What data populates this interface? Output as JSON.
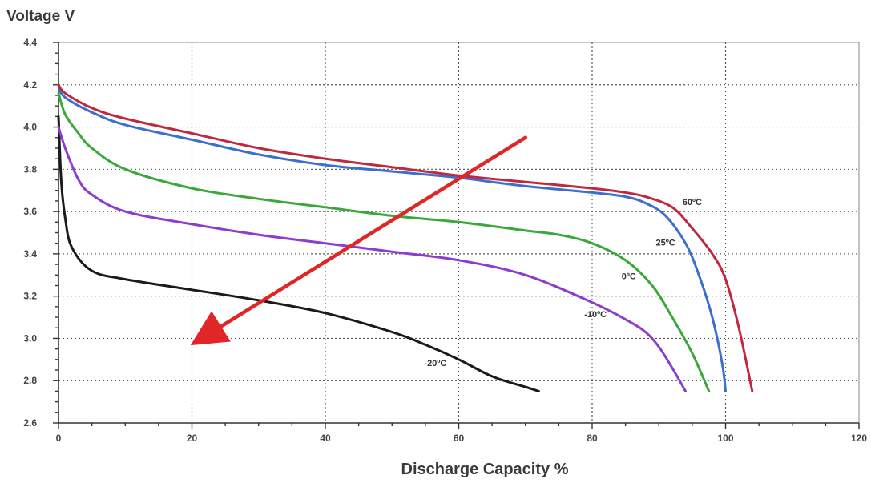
{
  "chart_data": {
    "type": "line",
    "title": "",
    "ylabel": "Voltage V",
    "xlabel": "Discharge Capacity %",
    "xlim": [
      0,
      120
    ],
    "ylim": [
      2.6,
      4.4
    ],
    "x_ticks": [
      0,
      20,
      40,
      60,
      80,
      100,
      120
    ],
    "x_tick_labels": [
      "0",
      "20",
      "40",
      "60",
      "80",
      "100",
      "120"
    ],
    "y_ticks": [
      2.6,
      2.8,
      3.0,
      3.2,
      3.4,
      3.6,
      3.8,
      4.0,
      4.2,
      4.4
    ],
    "y_tick_labels": [
      "2.6",
      "2.8",
      "3.0",
      "3.2",
      "3.4",
      "3.6",
      "3.8",
      "4.0",
      "4.2",
      "4.4"
    ],
    "grid": true,
    "series": [
      {
        "name": "60°C",
        "label": "60ºC",
        "color": "#c0283f",
        "label_at": [
          95,
          3.63
        ],
        "points": [
          [
            0,
            4.2
          ],
          [
            1,
            4.16
          ],
          [
            5,
            4.09
          ],
          [
            10,
            4.04
          ],
          [
            20,
            3.97
          ],
          [
            30,
            3.9
          ],
          [
            40,
            3.85
          ],
          [
            50,
            3.81
          ],
          [
            60,
            3.77
          ],
          [
            70,
            3.74
          ],
          [
            80,
            3.71
          ],
          [
            85,
            3.69
          ],
          [
            88,
            3.67
          ],
          [
            92,
            3.62
          ],
          [
            95,
            3.52
          ],
          [
            98,
            3.4
          ],
          [
            100,
            3.28
          ],
          [
            102,
            3.05
          ],
          [
            104,
            2.75
          ]
        ]
      },
      {
        "name": "25°C",
        "label": "25ºC",
        "color": "#3a6fcf",
        "label_at": [
          91,
          3.44
        ],
        "points": [
          [
            0,
            4.19
          ],
          [
            1,
            4.14
          ],
          [
            5,
            4.07
          ],
          [
            10,
            4.01
          ],
          [
            20,
            3.94
          ],
          [
            30,
            3.87
          ],
          [
            40,
            3.82
          ],
          [
            50,
            3.79
          ],
          [
            60,
            3.76
          ],
          [
            70,
            3.72
          ],
          [
            80,
            3.69
          ],
          [
            85,
            3.67
          ],
          [
            88,
            3.64
          ],
          [
            91,
            3.58
          ],
          [
            94,
            3.45
          ],
          [
            96,
            3.3
          ],
          [
            98,
            3.1
          ],
          [
            99.5,
            2.88
          ],
          [
            100,
            2.75
          ]
        ]
      },
      {
        "name": "0°C",
        "label": "0ºC",
        "color": "#3aa83a",
        "label_at": [
          85.5,
          3.28
        ],
        "points": [
          [
            0,
            4.16
          ],
          [
            1,
            4.06
          ],
          [
            3,
            3.97
          ],
          [
            5,
            3.9
          ],
          [
            10,
            3.8
          ],
          [
            20,
            3.71
          ],
          [
            30,
            3.66
          ],
          [
            40,
            3.62
          ],
          [
            50,
            3.58
          ],
          [
            60,
            3.55
          ],
          [
            70,
            3.51
          ],
          [
            75,
            3.49
          ],
          [
            80,
            3.45
          ],
          [
            85,
            3.37
          ],
          [
            89,
            3.25
          ],
          [
            92,
            3.1
          ],
          [
            95,
            2.93
          ],
          [
            97.5,
            2.75
          ]
        ]
      },
      {
        "name": "-10°C",
        "label": "-10ºC",
        "color": "#8c3ccf",
        "label_at": [
          80.5,
          3.1
        ],
        "points": [
          [
            0,
            4.0
          ],
          [
            1,
            3.9
          ],
          [
            3,
            3.75
          ],
          [
            5,
            3.68
          ],
          [
            10,
            3.6
          ],
          [
            20,
            3.54
          ],
          [
            30,
            3.49
          ],
          [
            40,
            3.45
          ],
          [
            50,
            3.41
          ],
          [
            60,
            3.37
          ],
          [
            70,
            3.3
          ],
          [
            80,
            3.17
          ],
          [
            85,
            3.09
          ],
          [
            88,
            3.03
          ],
          [
            90,
            2.96
          ],
          [
            92,
            2.86
          ],
          [
            94,
            2.75
          ]
        ]
      },
      {
        "name": "-20°C",
        "label": "-20ºC",
        "color": "#1a1a1a",
        "label_at": [
          56.5,
          2.87
        ],
        "points": [
          [
            0,
            4.05
          ],
          [
            0.4,
            3.75
          ],
          [
            1,
            3.57
          ],
          [
            2,
            3.43
          ],
          [
            5,
            3.32
          ],
          [
            10,
            3.28
          ],
          [
            20,
            3.23
          ],
          [
            30,
            3.18
          ],
          [
            40,
            3.12
          ],
          [
            50,
            3.03
          ],
          [
            55,
            2.97
          ],
          [
            60,
            2.9
          ],
          [
            65,
            2.82
          ],
          [
            70,
            2.77
          ],
          [
            72,
            2.75
          ]
        ]
      }
    ],
    "annotations": [
      {
        "type": "arrow",
        "color": "#e02626",
        "from": [
          70,
          3.95
        ],
        "to": [
          23,
          3.03
        ],
        "meaning": "decreasing temperature"
      }
    ]
  }
}
